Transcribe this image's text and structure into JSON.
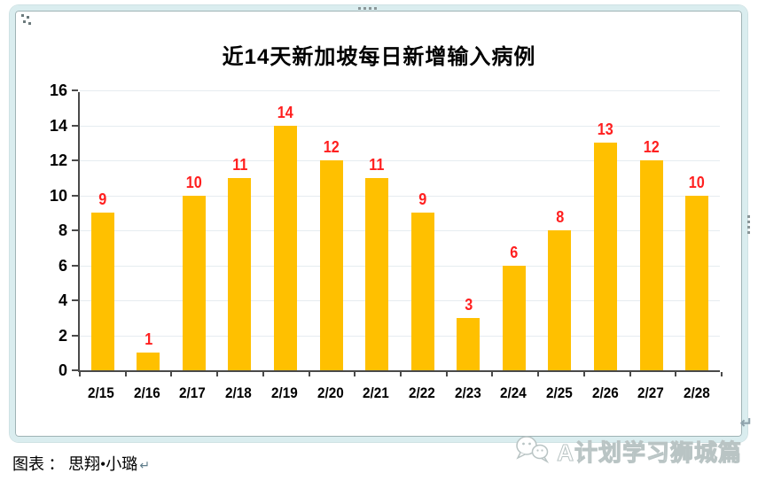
{
  "page": {
    "title": "近14天新加坡每日新增输入病例",
    "credit_label": "图表 ： 思翔•小璐",
    "return_mark": "↵",
    "watermark_text": "A计划学习狮城篇"
  },
  "colors": {
    "bar": "#FFC000",
    "data_label": "#FF1F1F",
    "gridline": "#E6ECF0",
    "axis": "#4A4A4A",
    "frame_border": "#DAEDEF",
    "frame_inner_line": "#9FB3B5",
    "watermark_outline": "#B9C4C4"
  },
  "chart_data": {
    "type": "bar",
    "title": "近14天新加坡每日新增输入病例",
    "categories": [
      "2/15",
      "2/16",
      "2/17",
      "2/18",
      "2/19",
      "2/20",
      "2/21",
      "2/22",
      "2/23",
      "2/24",
      "2/25",
      "2/26",
      "2/27",
      "2/28"
    ],
    "values": [
      9,
      1,
      10,
      11,
      14,
      12,
      11,
      9,
      3,
      6,
      8,
      13,
      12,
      10
    ],
    "xlabel": "",
    "ylabel": "",
    "ylim": [
      0,
      16
    ],
    "ytick_step": 2,
    "grid": true,
    "legend": false,
    "bar_color": "#FFC000",
    "label_color": "#FF1F1F"
  }
}
